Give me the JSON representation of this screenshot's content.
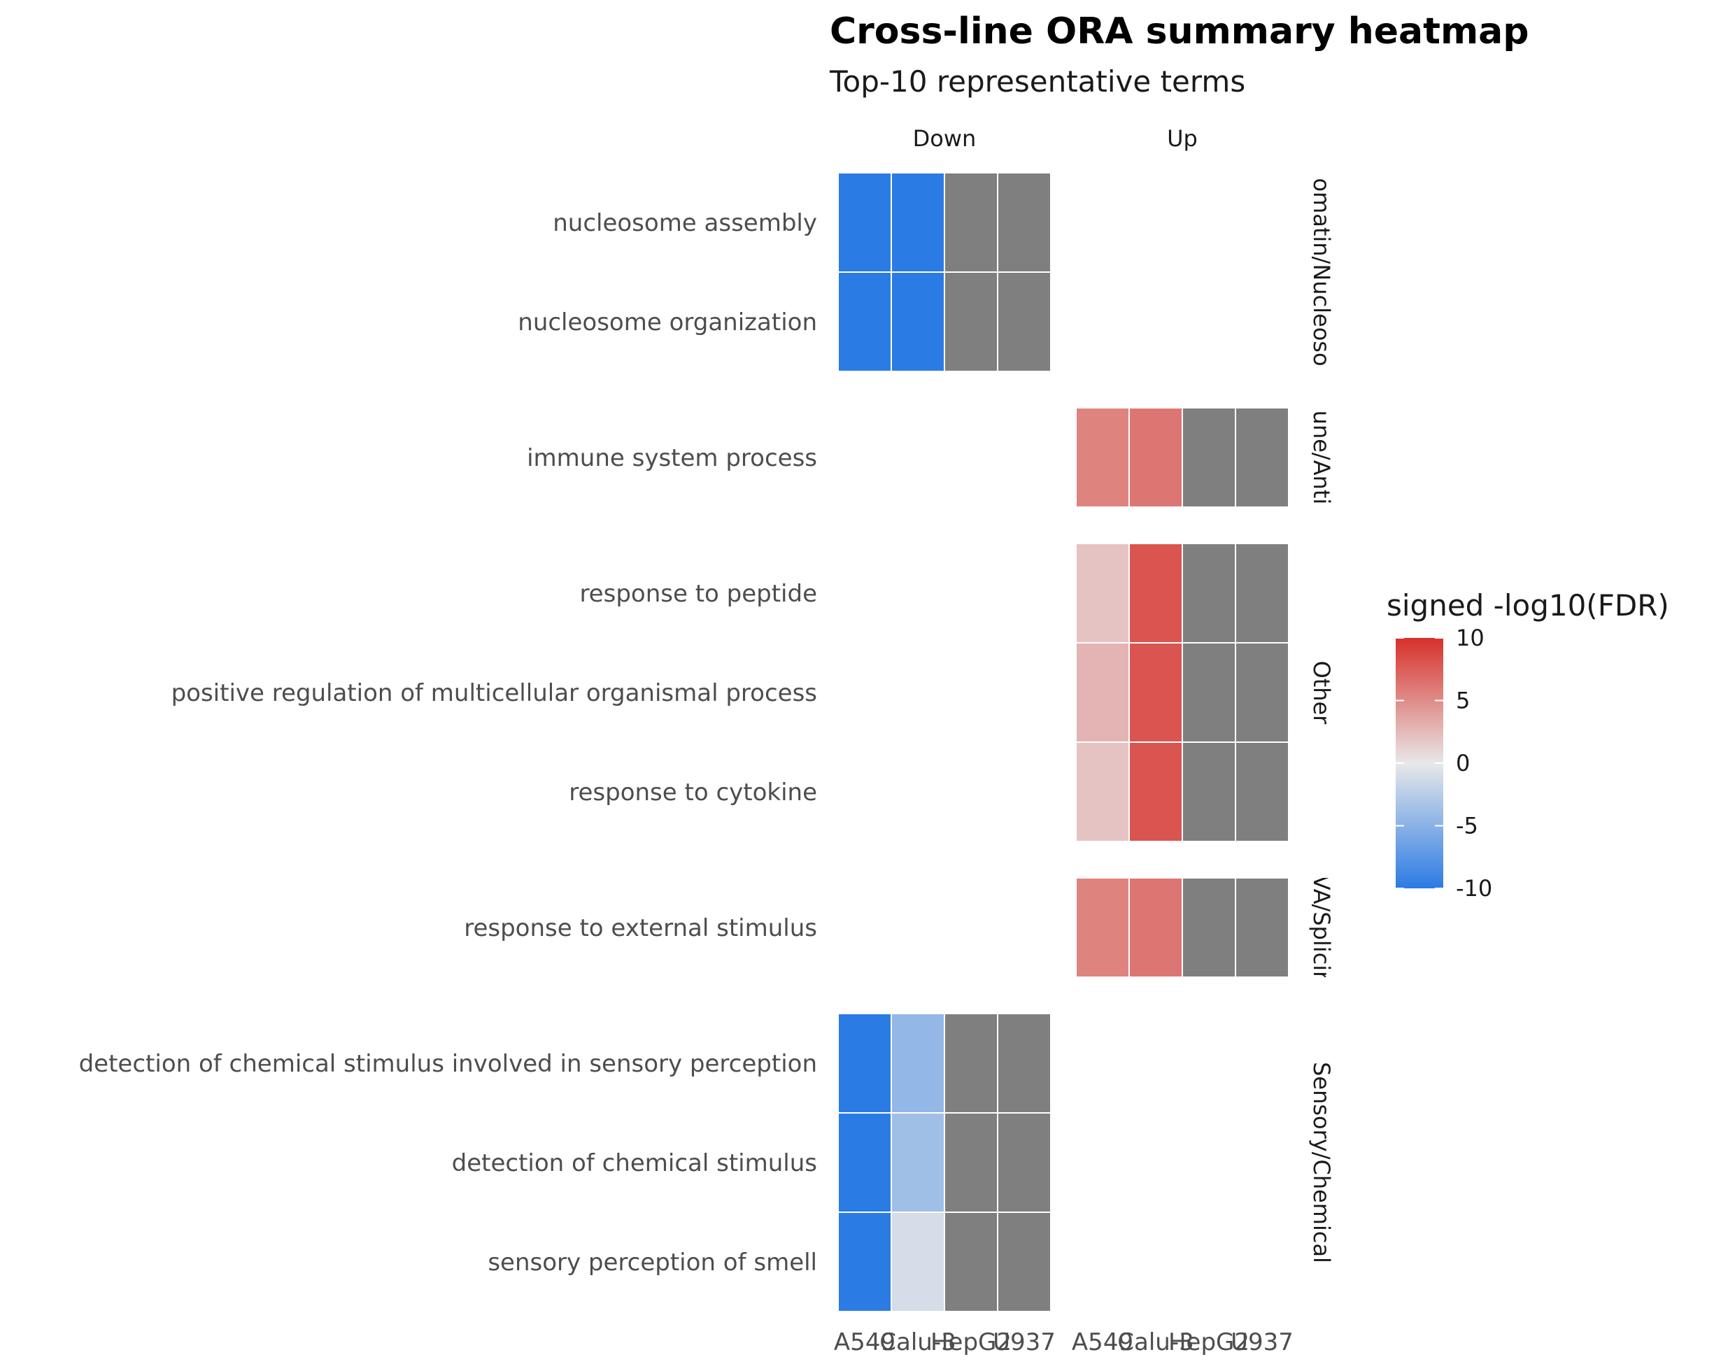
{
  "chart_data": {
    "type": "heatmap",
    "title": "Cross-line ORA summary heatmap",
    "subtitle": "Top-10 representative terms",
    "column_facets": [
      "Down",
      "Up"
    ],
    "x_categories": [
      "A549",
      "Calu-3",
      "HepG2",
      "U937"
    ],
    "row_facets": [
      {
        "label": "Chromatin/Nucleosome",
        "shown_label": "omatin/Nucleoso",
        "terms": [
          "nucleosome assembly",
          "nucleosome organization"
        ]
      },
      {
        "label": "Immune/Antiviral",
        "shown_label": "une/Anti",
        "terms": [
          "immune system process"
        ]
      },
      {
        "label": "Other",
        "shown_label": "Other",
        "terms": [
          "response to peptide",
          "positive regulation of multicellular organismal process",
          "response to cytokine"
        ]
      },
      {
        "label": "RNA/Splicing",
        "shown_label": "VA/Splicir",
        "terms": [
          "response to external stimulus"
        ]
      },
      {
        "label": "Sensory/Chemical",
        "shown_label": "Sensory/Chemical",
        "terms": [
          "detection of chemical stimulus involved in sensory perception",
          "detection of chemical stimulus",
          "sensory perception of smell"
        ]
      }
    ],
    "cells": [
      {
        "term": "nucleosome assembly",
        "direction": "Down",
        "values": [
          -10,
          -10,
          null,
          null
        ]
      },
      {
        "term": "nucleosome organization",
        "direction": "Down",
        "values": [
          -10,
          -10,
          null,
          null
        ]
      },
      {
        "term": "immune system process",
        "direction": "Up",
        "values": [
          5.5,
          6.2,
          null,
          null
        ]
      },
      {
        "term": "response to peptide",
        "direction": "Up",
        "values": [
          2.0,
          8.0,
          null,
          null
        ]
      },
      {
        "term": "positive regulation of multicellular organismal process",
        "direction": "Up",
        "values": [
          2.8,
          8.0,
          null,
          null
        ]
      },
      {
        "term": "response to cytokine",
        "direction": "Up",
        "values": [
          2.0,
          8.0,
          null,
          null
        ]
      },
      {
        "term": "response to external stimulus",
        "direction": "Up",
        "values": [
          5.5,
          6.2,
          null,
          null
        ]
      },
      {
        "term": "detection of chemical stimulus involved in sensory perception",
        "direction": "Down",
        "values": [
          -10,
          -4.5,
          null,
          null
        ]
      },
      {
        "term": "detection of chemical stimulus",
        "direction": "Down",
        "values": [
          -10,
          -3.8,
          null,
          null
        ]
      },
      {
        "term": "sensory perception of smell",
        "direction": "Down",
        "values": [
          -10,
          -1.0,
          null,
          null
        ]
      }
    ],
    "na_color": "#7f7f7f",
    "legend": {
      "title": "signed -log10(FDR)",
      "limits": [
        -10,
        10
      ],
      "breaks": [
        10,
        5,
        0,
        -5,
        -10
      ],
      "low_color": "#2b7be4",
      "mid_color": "#e8e8e8",
      "high_color": "#d7302a",
      "placement": "right"
    }
  }
}
